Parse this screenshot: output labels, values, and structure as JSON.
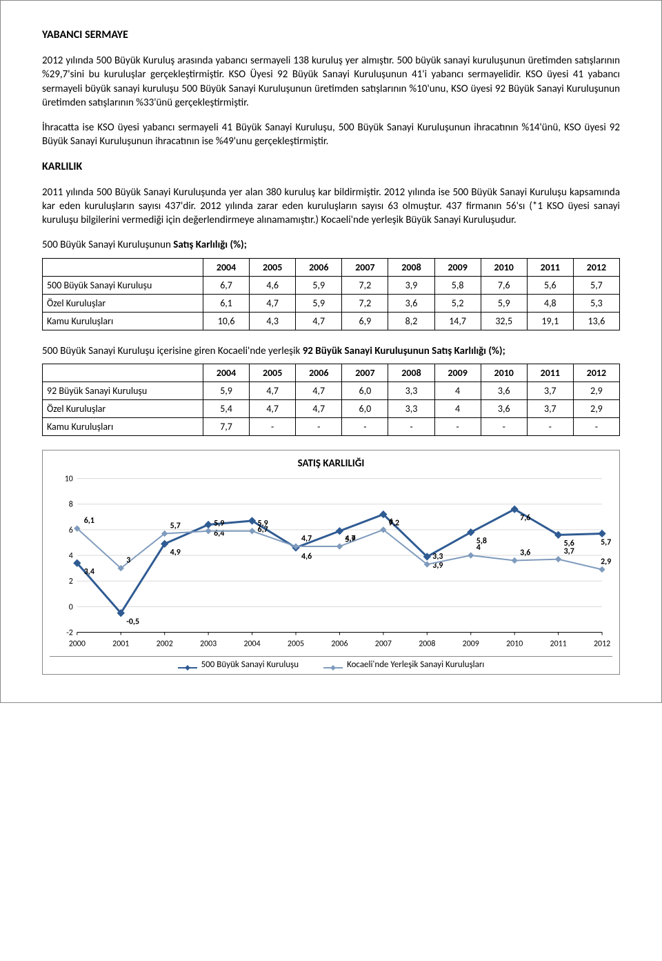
{
  "section1": {
    "title": "YABANCI SERMAYE",
    "p1": "2012 yılında 500 Büyük Kuruluş arasında yabancı sermayeli 138 kuruluş yer almıştır. 500 büyük sanayi kuruluşunun üretimden satışlarının %29,7'sini bu kuruluşlar gerçekleştirmiştir. KSO Üyesi 92 Büyük Sanayi Kuruluşunun 41'i yabancı sermayelidir. KSO üyesi 41 yabancı sermayeli büyük sanayi kuruluşu 500 Büyük Sanayi Kuruluşunun üretimden satışlarının %10'unu, KSO üyesi 92 Büyük Sanayi Kuruluşunun üretimden satışlarının %33'ünü gerçekleştirmiştir.",
    "p2": "İhracatta ise KSO üyesi yabancı sermayeli 41 Büyük Sanayi Kuruluşu, 500 Büyük Sanayi Kuruluşunun ihracatının %14'ünü, KSO üyesi 92 Büyük Sanayi Kuruluşunun ihracatının ise %49'unu gerçekleştirmiştir."
  },
  "section2": {
    "title": "KARLILIK",
    "p1": "2011 yılında 500 Büyük Sanayi Kuruluşunda yer alan 380 kuruluş kar bildirmiştir. 2012 yılında ise 500 Büyük Sanayi Kuruluşu kapsamında kar eden kuruluşların sayısı 437'dir. 2012 yılında zarar eden kuruluşların sayısı 63 olmuştur. 437 firmanın 56'sı (*1 KSO üyesi sanayi kuruluşu bilgilerini vermediği için değerlendirmeye alınamamıştır.) Kocaeli'nde yerleşik Büyük Sanayi Kuruluşudur."
  },
  "table1": {
    "intro_prefix": "500 Büyük Sanayi Kuruluşunun ",
    "intro_bold": "Satış Karlılığı (%);",
    "years": [
      "2004",
      "2005",
      "2006",
      "2007",
      "2008",
      "2009",
      "2010",
      "2011",
      "2012"
    ],
    "rows": [
      {
        "label": "500 Büyük Sanayi Kuruluşu",
        "cells": [
          "6,7",
          "4,6",
          "5,9",
          "7,2",
          "3,9",
          "5,8",
          "7,6",
          "5,6",
          "5,7"
        ]
      },
      {
        "label": "Özel Kuruluşlar",
        "cells": [
          "6,1",
          "4,7",
          "5,9",
          "7,2",
          "3,6",
          "5,2",
          "5,9",
          "4,8",
          "5,3"
        ]
      },
      {
        "label": "Kamu Kuruluşları",
        "cells": [
          "10,6",
          "4,3",
          "4,7",
          "6,9",
          "8,2",
          "14,7",
          "32,5",
          "19,1",
          "13,6"
        ]
      }
    ]
  },
  "table2": {
    "intro_prefix": "500 Büyük Sanayi Kuruluşu içerisine giren Kocaeli'nde yerleşik ",
    "intro_bold": "92 Büyük Sanayi Kuruluşunun Satış Karlılığı (%);",
    "years": [
      "2004",
      "2005",
      "2006",
      "2007",
      "2008",
      "2009",
      "2010",
      "2011",
      "2012"
    ],
    "rows": [
      {
        "label": "92 Büyük Sanayi Kuruluşu",
        "cells": [
          "5,9",
          "4,7",
          "4,7",
          "6,0",
          "3,3",
          "4",
          "3,6",
          "3,7",
          "2,9"
        ]
      },
      {
        "label": "Özel Kuruluşlar",
        "cells": [
          "5,4",
          "4,7",
          "4,7",
          "6,0",
          "3,3",
          "4",
          "3,6",
          "3,7",
          "2,9"
        ]
      },
      {
        "label": "Kamu Kuruluşları",
        "cells": [
          "7,7",
          "-",
          "-",
          "-",
          "-",
          "-",
          "-",
          "-",
          "-"
        ]
      }
    ]
  },
  "chart": {
    "title": "SATIŞ KARLILIĞI",
    "x_labels": [
      "2000",
      "2001",
      "2002",
      "2003",
      "2004",
      "2005",
      "2006",
      "2007",
      "2008",
      "2009",
      "2010",
      "2011",
      "2012"
    ],
    "y_ticks": [
      -2,
      0,
      2,
      4,
      6,
      8,
      10
    ],
    "y_min": -2,
    "y_max": 10,
    "series": [
      {
        "name": "500 Büyük Sanayi Kuruluşu",
        "color": "#2f5b93",
        "lineWidth": 3,
        "markerSize": 5,
        "values": [
          3.4,
          -0.5,
          4.9,
          6.4,
          6.7,
          4.6,
          5.9,
          7.2,
          3.9,
          5.8,
          7.6,
          5.6,
          5.7
        ],
        "labels": [
          "3,4",
          "-0,5",
          "4,9",
          "6,4",
          "6,7",
          "4,6",
          "5,9",
          "7,2",
          "3,9",
          "5,8",
          "7,6",
          "5,6",
          "5,7"
        ]
      },
      {
        "name": "Kocaeli'nde Yerleşik Sanayi Kuruluşları",
        "color": "#7f9bbd",
        "lineWidth": 2,
        "markerSize": 4,
        "values": [
          6.1,
          3.0,
          5.7,
          5.9,
          5.9,
          4.7,
          4.7,
          6.0,
          3.3,
          4.0,
          3.6,
          3.7,
          2.9
        ],
        "labels": [
          "6,1",
          "3",
          "5,7",
          "5,9",
          "5,9",
          "4,7",
          "4,7",
          "6",
          "3,3",
          "4",
          "3,6",
          "3,7",
          "2,9"
        ]
      }
    ],
    "colors": {
      "grid": "#d9d9d9",
      "text": "#000000",
      "background": "#ffffff"
    },
    "font_size_axis": 12,
    "font_size_label": 12
  }
}
